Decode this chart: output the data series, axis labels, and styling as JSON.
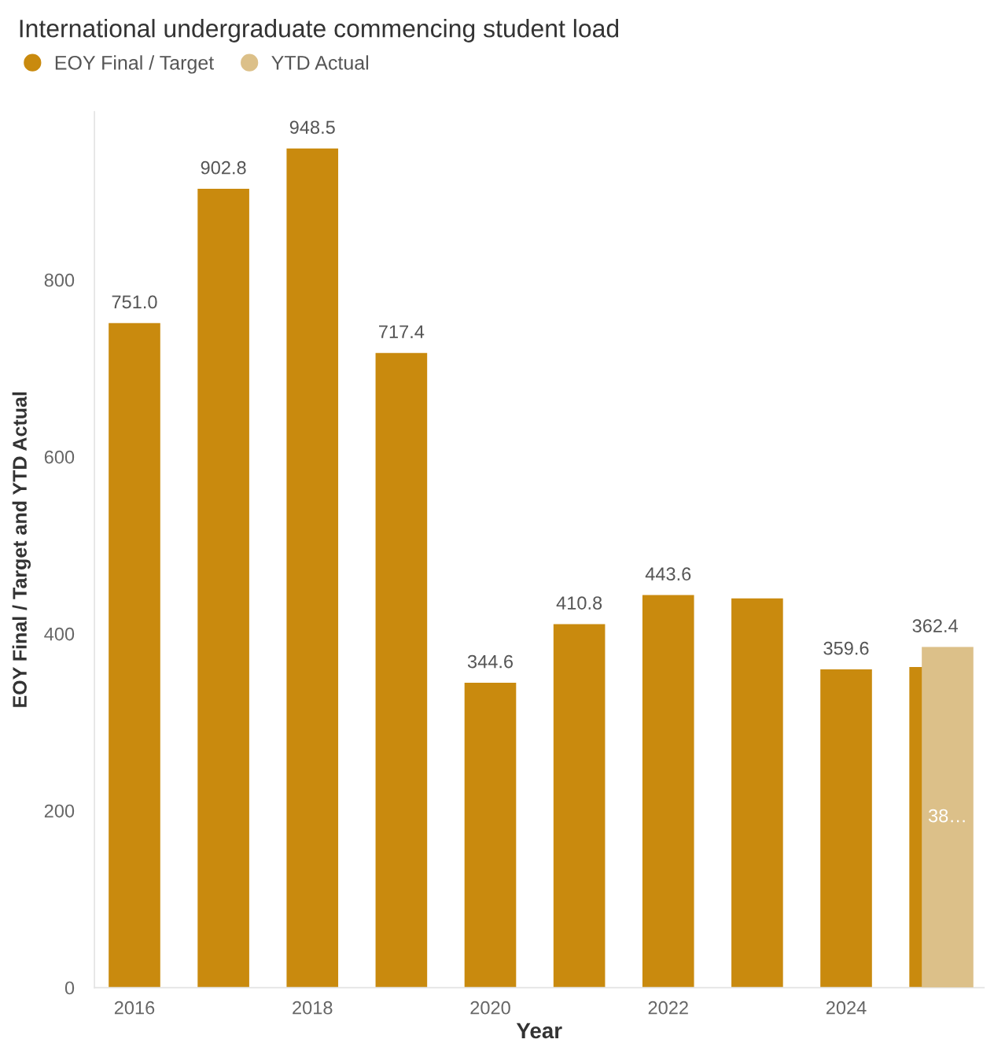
{
  "chart_data": {
    "type": "bar",
    "title": "International undergraduate commencing student load",
    "xlabel": "Year",
    "ylabel": "EOY Final / Target and YTD Actual",
    "x": [
      2016,
      2017,
      2018,
      2019,
      2020,
      2021,
      2022,
      2023,
      2024,
      2025
    ],
    "series": [
      {
        "name": "EOY Final / Target",
        "color": "#c98a0e",
        "values": [
          751.0,
          902.8,
          948.5,
          717.4,
          344.6,
          410.8,
          443.6,
          440,
          359.6,
          362.4
        ],
        "value_labels": [
          "751.0",
          "902.8",
          "948.5",
          "717.4",
          "344.6",
          "410.8",
          "443.6",
          null,
          "359.6",
          "362.4"
        ]
      },
      {
        "name": "YTD Actual",
        "color": "#dcc089",
        "values": [
          null,
          null,
          null,
          null,
          null,
          null,
          null,
          null,
          null,
          385
        ],
        "value_labels": [
          null,
          null,
          null,
          null,
          null,
          null,
          null,
          null,
          null,
          "38…"
        ]
      }
    ],
    "xlim": [
      2015.55,
      2025.55
    ],
    "xticks": [
      2016,
      2018,
      2020,
      2022,
      2024
    ],
    "ylim": [
      0,
      990
    ],
    "yticks": [
      0,
      200,
      400,
      600,
      800
    ],
    "grid": false,
    "legend": "top left"
  }
}
